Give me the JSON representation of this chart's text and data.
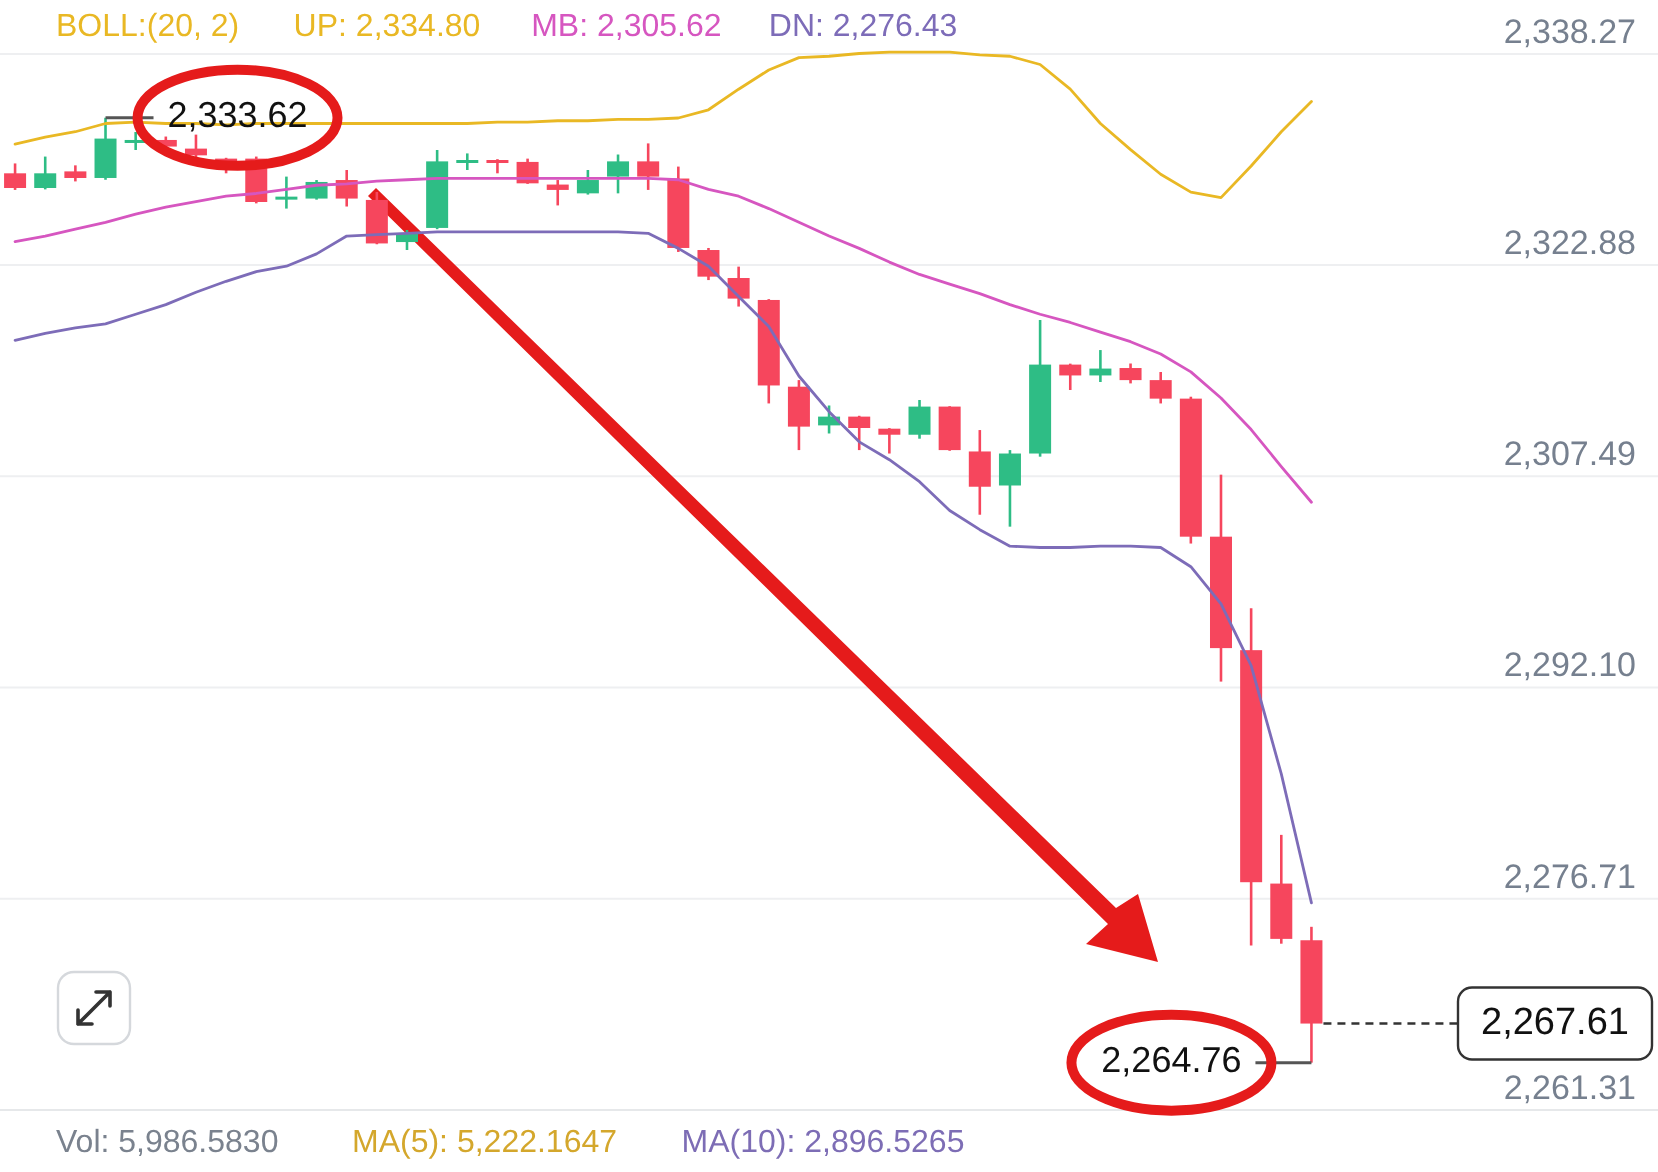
{
  "chart_data": {
    "type": "candlestick",
    "categories": [
      null,
      null,
      null,
      null,
      null,
      null,
      null,
      null,
      null,
      null,
      null,
      null,
      null,
      null,
      null,
      null,
      null,
      null,
      null,
      null,
      null,
      null,
      null,
      null,
      null,
      null,
      null,
      null,
      null,
      null,
      null,
      null,
      null,
      null,
      null,
      null,
      null,
      null,
      null,
      null,
      null,
      null,
      null,
      null
    ],
    "ohlc": [
      [
        2329.57,
        2330.29,
        2328.36,
        2328.5
      ],
      [
        2328.5,
        2330.79,
        2328.4,
        2329.57
      ],
      [
        2329.71,
        2330.15,
        2328.98,
        2329.23
      ],
      [
        2329.23,
        2333.62,
        2329.1,
        2332.1
      ],
      [
        2331.85,
        2332.58,
        2331.27,
        2332.0
      ],
      [
        2332.0,
        2332.25,
        2331.27,
        2331.52
      ],
      [
        2331.37,
        2332.39,
        2330.54,
        2330.88
      ],
      [
        2330.64,
        2330.7,
        2329.57,
        2330.44
      ],
      [
        2330.64,
        2330.79,
        2327.38,
        2327.48
      ],
      [
        2327.73,
        2329.33,
        2327.0,
        2327.87
      ],
      [
        2327.73,
        2329.08,
        2327.65,
        2328.94
      ],
      [
        2329.08,
        2329.81,
        2327.15,
        2327.73
      ],
      [
        2327.63,
        2328.21,
        2324.4,
        2324.46
      ],
      [
        2324.56,
        2325.44,
        2323.98,
        2325.19
      ],
      [
        2325.59,
        2331.27,
        2325.5,
        2330.44
      ],
      [
        2330.4,
        2331.02,
        2329.81,
        2330.54
      ],
      [
        2330.54,
        2330.6,
        2329.57,
        2330.4
      ],
      [
        2330.4,
        2330.64,
        2328.8,
        2328.84
      ],
      [
        2328.75,
        2329.08,
        2327.23,
        2328.36
      ],
      [
        2328.11,
        2329.81,
        2328.02,
        2329.08
      ],
      [
        2329.33,
        2330.94,
        2328.11,
        2330.44
      ],
      [
        2330.44,
        2331.75,
        2328.36,
        2329.33
      ],
      [
        2329.19,
        2330.06,
        2323.84,
        2324.13
      ],
      [
        2323.98,
        2324.13,
        2321.79,
        2322.04
      ],
      [
        2321.94,
        2322.77,
        2319.86,
        2320.44
      ],
      [
        2320.34,
        2320.4,
        2312.8,
        2314.11
      ],
      [
        2314.02,
        2314.5,
        2309.4,
        2311.11
      ],
      [
        2311.2,
        2312.65,
        2310.61,
        2311.84
      ],
      [
        2311.84,
        2311.9,
        2309.4,
        2311.01
      ],
      [
        2310.96,
        2311.0,
        2309.15,
        2310.52
      ],
      [
        2310.52,
        2313.05,
        2310.23,
        2312.57
      ],
      [
        2312.57,
        2312.6,
        2309.35,
        2309.4
      ],
      [
        2309.3,
        2310.86,
        2304.69,
        2306.73
      ],
      [
        2306.82,
        2309.4,
        2303.82,
        2309.15
      ],
      [
        2309.15,
        2318.88,
        2308.92,
        2315.63
      ],
      [
        2315.63,
        2315.7,
        2313.78,
        2314.84
      ],
      [
        2314.84,
        2316.69,
        2314.36,
        2315.34
      ],
      [
        2315.38,
        2315.71,
        2314.26,
        2314.5
      ],
      [
        2314.5,
        2315.09,
        2312.8,
        2313.15
      ],
      [
        2313.15,
        2313.29,
        2302.59,
        2303.09
      ],
      [
        2303.09,
        2307.61,
        2292.53,
        2294.97
      ],
      [
        2294.82,
        2297.88,
        2273.29,
        2277.91
      ],
      [
        2277.81,
        2281.36,
        2273.43,
        2273.78
      ],
      [
        2273.68,
        2274.66,
        2264.76,
        2267.61
      ]
    ],
    "colors": [
      "#f6465d",
      "#2ebd85",
      "#f6465d",
      "#2ebd85",
      "#2ebd85",
      "#f6465d",
      "#f6465d",
      "#f6465d",
      "#f6465d",
      "#2ebd85",
      "#2ebd85",
      "#f6465d",
      "#f6465d",
      "#2ebd85",
      "#2ebd85",
      "#2ebd85",
      "#f6465d",
      "#f6465d",
      "#f6465d",
      "#2ebd85",
      "#2ebd85",
      "#f6465d",
      "#f6465d",
      "#f6465d",
      "#f6465d",
      "#f6465d",
      "#f6465d",
      "#2ebd85",
      "#f6465d",
      "#f6465d",
      "#2ebd85",
      "#f6465d",
      "#f6465d",
      "#2ebd85",
      "#2ebd85",
      "#f6465d",
      "#2ebd85",
      "#f6465d",
      "#f6465d",
      "#f6465d",
      "#f6465d",
      "#f6465d",
      "#f6465d",
      "#f6465d"
    ],
    "series": [
      {
        "name": "UP: 2,334.80",
        "type": "line",
        "color": "#e9b824",
        "values": [
          2331.7,
          2332.2,
          2332.6,
          2333.2,
          2333.3,
          2333.2,
          2333.2,
          2333.1,
          2333.2,
          2333.2,
          2333.2,
          2333.2,
          2333.2,
          2333.2,
          2333.2,
          2333.2,
          2333.3,
          2333.3,
          2333.4,
          2333.4,
          2333.5,
          2333.5,
          2333.6,
          2334.2,
          2335.7,
          2337.1,
          2338.0,
          2338.1,
          2338.3,
          2338.4,
          2338.4,
          2338.4,
          2338.2,
          2338.1,
          2337.5,
          2335.7,
          2333.2,
          2331.3,
          2329.5,
          2328.2,
          2327.8,
          2330.1,
          2332.6,
          2334.8
        ]
      },
      {
        "name": "MB: 2,305.62",
        "type": "line",
        "color": "#d656c0",
        "values": [
          2324.6,
          2325.0,
          2325.5,
          2326.0,
          2326.6,
          2327.1,
          2327.5,
          2327.9,
          2328.1,
          2328.4,
          2328.7,
          2328.8,
          2329.0,
          2329.1,
          2329.2,
          2329.2,
          2329.2,
          2329.2,
          2329.2,
          2329.2,
          2329.2,
          2329.2,
          2329.1,
          2328.4,
          2327.9,
          2327.0,
          2326.0,
          2325.0,
          2324.1,
          2323.1,
          2322.2,
          2321.5,
          2320.8,
          2320.0,
          2319.3,
          2318.7,
          2318.0,
          2317.3,
          2316.4,
          2315.1,
          2313.2,
          2310.9,
          2308.2,
          2305.6
        ]
      },
      {
        "name": "DN: 2,276.43",
        "type": "line",
        "color": "#7d6cb8",
        "values": [
          2317.4,
          2317.9,
          2318.3,
          2318.6,
          2319.3,
          2320.0,
          2320.9,
          2321.7,
          2322.4,
          2322.8,
          2323.7,
          2325.0,
          2325.1,
          2325.2,
          2325.3,
          2325.3,
          2325.3,
          2325.3,
          2325.3,
          2325.3,
          2325.3,
          2325.2,
          2324.1,
          2322.8,
          2320.6,
          2318.4,
          2314.8,
          2312.2,
          2310.0,
          2308.7,
          2307.1,
          2305.0,
          2303.6,
          2302.4,
          2302.3,
          2302.3,
          2302.4,
          2302.4,
          2302.3,
          2300.9,
          2298.2,
          2293.7,
          2285.8,
          2276.4
        ]
      }
    ],
    "legend": "top",
    "legend_title": "BOLL:(20, 2)",
    "ylim": [
      2261.31,
      2342.2
    ],
    "yticks": [
      {
        "value": 2338.27,
        "label": "2,338.27"
      },
      {
        "value": 2322.88,
        "label": "2,322.88"
      },
      {
        "value": 2307.49,
        "label": "2,307.49"
      },
      {
        "value": 2292.1,
        "label": "2,292.10"
      },
      {
        "value": 2276.71,
        "label": "2,276.71"
      },
      {
        "value": 2261.31,
        "label": "2,261.31"
      }
    ],
    "tick_labels": "y",
    "grid": "y",
    "ref_lines": [
      {
        "axis": "y",
        "value": 2267.61,
        "label": "2,267.61",
        "line_style": "dashed"
      }
    ],
    "annotations": [
      {
        "text": "2,333.62",
        "y": 2333.62
      },
      "2,264.76",
      "Vol: 5,986.5830",
      "MA(5): 5,222.1647",
      "MA(10): 2,896.5265"
    ]
  }
}
